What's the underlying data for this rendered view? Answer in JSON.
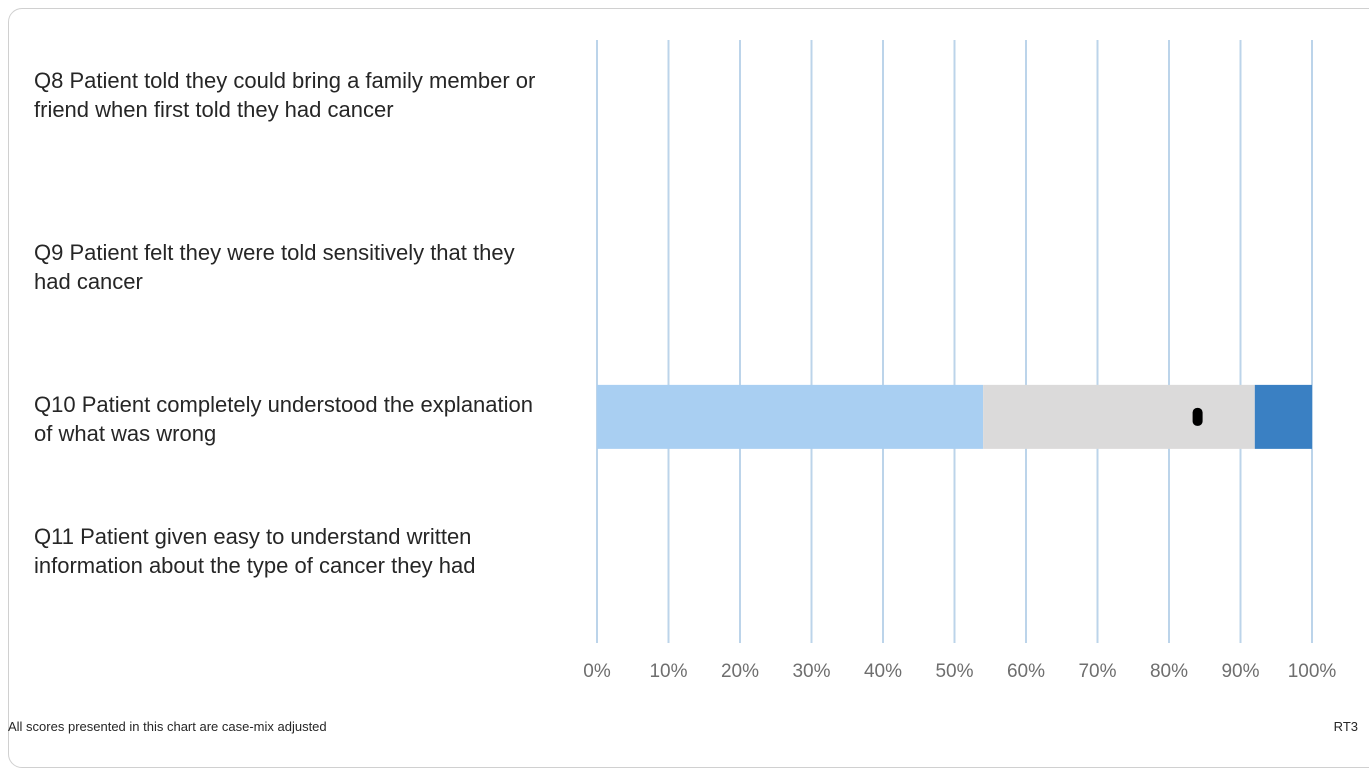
{
  "chart_data": {
    "type": "bar",
    "orientation": "horizontal",
    "stacked": true,
    "categories": [
      "Q8 Patient told they could bring a family member or friend when first told they had cancer",
      "Q9 Patient felt they were told sensitively that they had cancer",
      "Q10 Patient completely understood the explanation of what was wrong",
      "Q11 Patient given easy to understand written information about the type of cancer they had"
    ],
    "series": [
      {
        "color": "#a9cff2",
        "values": [
          null,
          null,
          54,
          null
        ]
      },
      {
        "color": "#dbdada",
        "values": [
          null,
          null,
          38,
          null
        ]
      },
      {
        "color": "#3a80c3",
        "values": [
          null,
          null,
          8,
          null
        ]
      }
    ],
    "markers": [
      null,
      null,
      84,
      null
    ],
    "marker_color": "#000000",
    "gridline_color": "#bcd4ea",
    "xlim": [
      0,
      100
    ],
    "x_ticks": [
      "0%",
      "10%",
      "20%",
      "30%",
      "40%",
      "50%",
      "60%",
      "70%",
      "80%",
      "90%",
      "100%"
    ],
    "grid": true
  },
  "footnote": "All scores presented in this chart are case-mix adjusted",
  "chart_code": "RT3"
}
